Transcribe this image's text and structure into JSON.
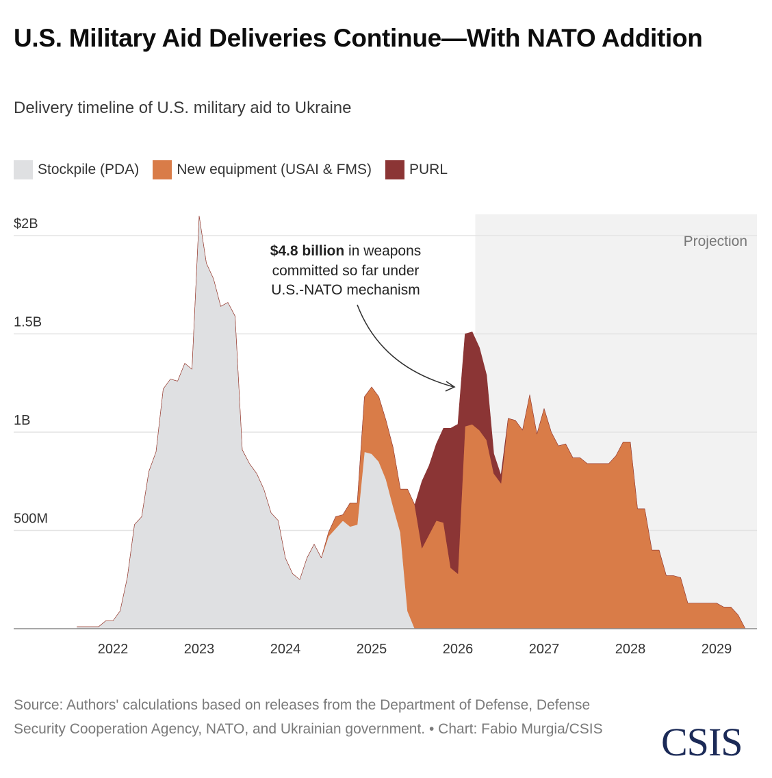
{
  "header": {
    "title": "U.S. Military Aid Deliveries Continue—With NATO Addition",
    "subtitle": "Delivery timeline of U.S. military aid to Ukraine"
  },
  "legend": [
    {
      "label": "Stockpile (PDA)",
      "color": "#dfe0e2"
    },
    {
      "label": "New equipment (USAI & FMS)",
      "color": "#d97c48"
    },
    {
      "label": "PURL",
      "color": "#8b3535"
    }
  ],
  "annotation": {
    "bold": "$4.8 billion",
    "line1_rest": " in weapons",
    "line2": "committed so far under",
    "line3": "U.S.-NATO mechanism"
  },
  "projection_label": "Projection",
  "footer": {
    "source": "Source: Authors' calculations based on releases from the Department of Defense, Defense Security Cooperation Agency, NATO, and Ukrainian government. • Chart: Fabio Murgia/CSIS",
    "logo": "CSIS"
  },
  "chart_data": {
    "type": "area",
    "stacked": true,
    "title": "U.S. Military Aid Deliveries Continue—With NATO Addition",
    "subtitle": "Delivery timeline of U.S. military aid to Ukraine",
    "xlabel": "",
    "ylabel": "",
    "x_start": "2021-08",
    "x_step": "month",
    "x_ticks": [
      "2022",
      "2023",
      "2024",
      "2025",
      "2026",
      "2027",
      "2028",
      "2029"
    ],
    "y_ticks": [
      {
        "value": 0.5,
        "label": "500M"
      },
      {
        "value": 1.0,
        "label": "1B"
      },
      {
        "value": 1.5,
        "label": "1.5B"
      },
      {
        "value": 2.0,
        "label": "$2B"
      }
    ],
    "ylim": [
      0,
      2.1
    ],
    "y_units": "USD billions",
    "grid": true,
    "legend_position": "top-left",
    "projection_start": "2026-04",
    "series": [
      {
        "name": "Stockpile (PDA)",
        "color": "#dfe0e2",
        "values": [
          0.01,
          0.01,
          0.01,
          0.01,
          0.04,
          0.04,
          0.09,
          0.26,
          0.53,
          0.57,
          0.8,
          0.9,
          1.22,
          1.27,
          1.26,
          1.35,
          1.32,
          2.1,
          1.86,
          1.78,
          1.64,
          1.66,
          1.59,
          0.91,
          0.84,
          0.79,
          0.71,
          0.59,
          0.55,
          0.36,
          0.28,
          0.25,
          0.36,
          0.43,
          0.36,
          0.47,
          0.51,
          0.55,
          0.52,
          0.53,
          0.9,
          0.89,
          0.85,
          0.76,
          0.62,
          0.49,
          0.09,
          0,
          0,
          0,
          0,
          0,
          0,
          0,
          0,
          0,
          0,
          0,
          0,
          0,
          0,
          0,
          0,
          0,
          0,
          0,
          0,
          0,
          0,
          0,
          0,
          0,
          0,
          0,
          0,
          0,
          0,
          0,
          0,
          0,
          0,
          0,
          0,
          0,
          0,
          0,
          0,
          0,
          0,
          0,
          0,
          0,
          0,
          0
        ]
      },
      {
        "name": "New equipment (USAI & FMS)",
        "color": "#d97c48",
        "values": [
          0,
          0,
          0,
          0,
          0,
          0,
          0,
          0,
          0,
          0,
          0,
          0,
          0,
          0,
          0,
          0,
          0,
          0,
          0,
          0,
          0,
          0,
          0,
          0,
          0,
          0,
          0,
          0,
          0,
          0,
          0,
          0,
          0,
          0,
          0,
          0.02,
          0.06,
          0.03,
          0.12,
          0.11,
          0.28,
          0.34,
          0.33,
          0.3,
          0.3,
          0.22,
          0.62,
          0.63,
          0.41,
          0.48,
          0.55,
          0.54,
          0.31,
          0.28,
          1.03,
          1.04,
          1.01,
          0.96,
          0.79,
          0.74,
          1.07,
          1.06,
          1.01,
          1.19,
          0.99,
          1.12,
          1.0,
          0.93,
          0.94,
          0.87,
          0.87,
          0.84,
          0.84,
          0.84,
          0.84,
          0.88,
          0.95,
          0.95,
          0.61,
          0.61,
          0.4,
          0.4,
          0.27,
          0.27,
          0.26,
          0.13,
          0.13,
          0.13,
          0.13,
          0.13,
          0.11,
          0.11,
          0.07
        ]
      },
      {
        "name": "PURL",
        "color": "#8b3535",
        "values": [
          0,
          0,
          0,
          0,
          0,
          0,
          0,
          0,
          0,
          0,
          0,
          0,
          0,
          0,
          0,
          0,
          0,
          0,
          0,
          0,
          0,
          0,
          0,
          0,
          0,
          0,
          0,
          0,
          0,
          0,
          0,
          0,
          0,
          0,
          0,
          0,
          0,
          0,
          0,
          0,
          0,
          0,
          0,
          0,
          0,
          0,
          0,
          0,
          0.34,
          0.35,
          0.39,
          0.48,
          0.71,
          0.76,
          0.47,
          0.47,
          0.42,
          0.33,
          0.1,
          0.04,
          0,
          0,
          0,
          0,
          0,
          0,
          0,
          0,
          0,
          0,
          0,
          0,
          0,
          0,
          0,
          0,
          0,
          0,
          0,
          0,
          0,
          0,
          0,
          0,
          0,
          0,
          0,
          0,
          0,
          0,
          0,
          0,
          0
        ]
      }
    ]
  }
}
